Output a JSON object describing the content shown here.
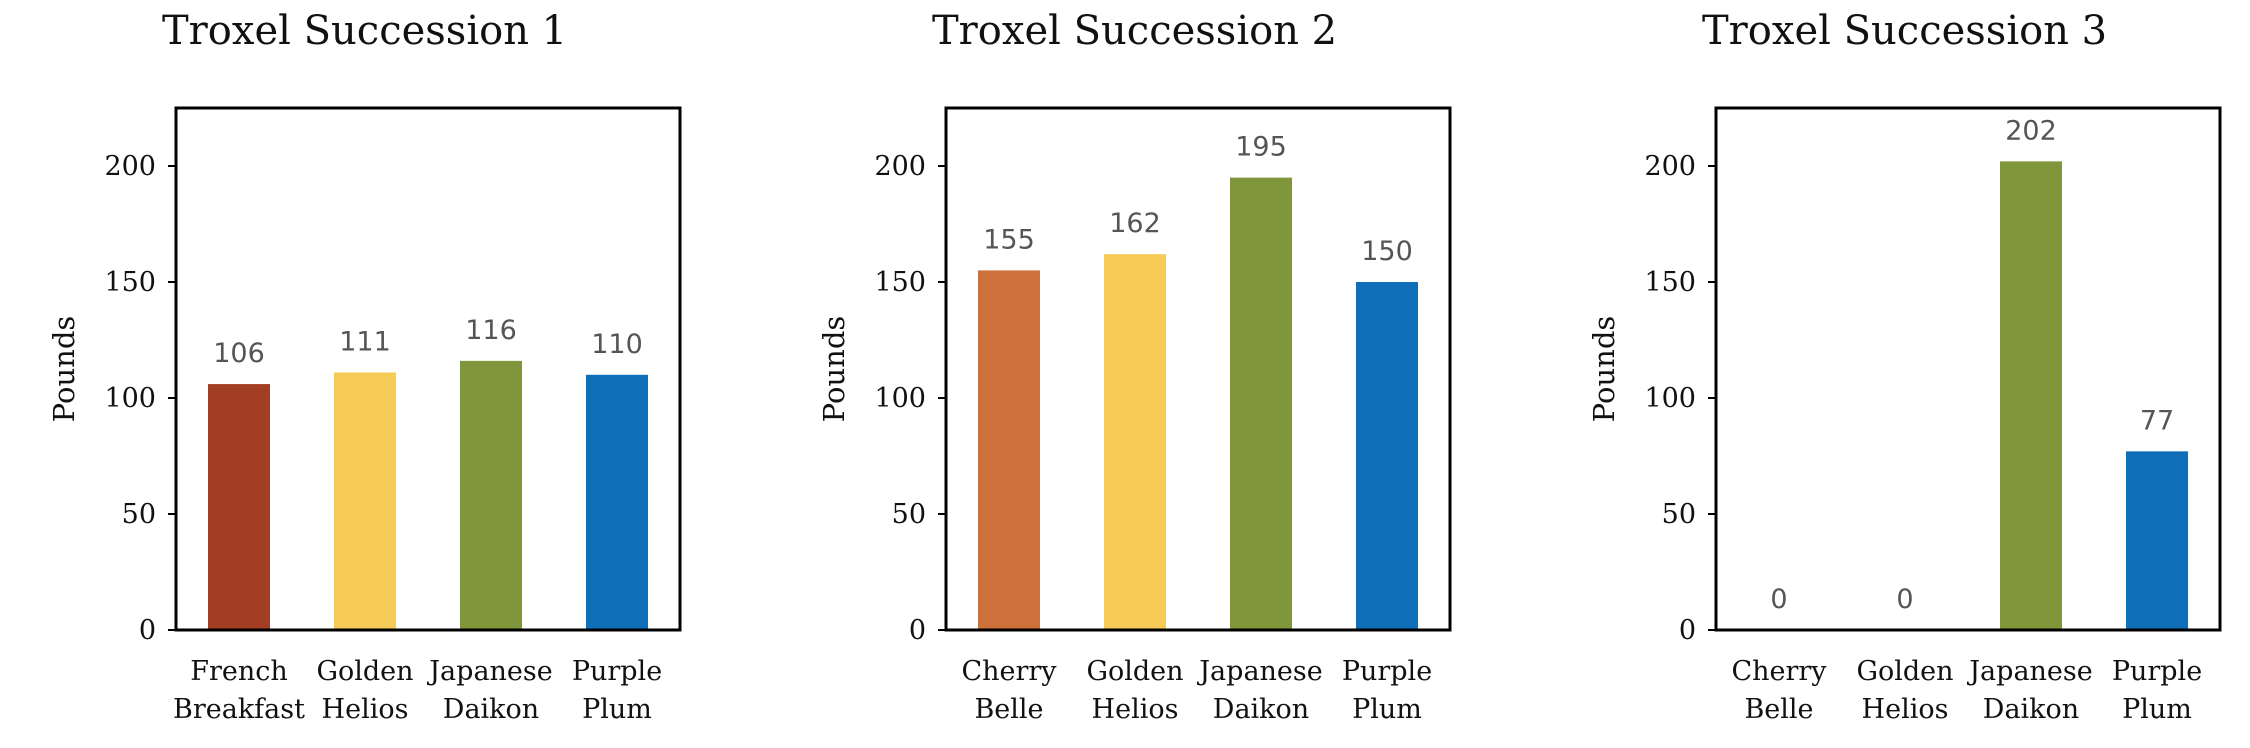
{
  "chart_data": [
    {
      "type": "bar",
      "title": "Troxel Succession 1",
      "ylabel": "Pounds",
      "xlabel": "",
      "ylim": [
        0,
        225
      ],
      "yticks": [
        0,
        50,
        100,
        150,
        200
      ],
      "grid": false,
      "categories": [
        [
          "French",
          "Breakfast"
        ],
        [
          "Golden",
          "Helios"
        ],
        [
          "Japanese",
          "Daikon"
        ],
        [
          "Purple",
          "Plum"
        ]
      ],
      "values": [
        106,
        111,
        116,
        110
      ],
      "colors": [
        "#A23E23",
        "#F6CB55",
        "#80963B",
        "#0F6EB8"
      ]
    },
    {
      "type": "bar",
      "title": "Troxel Succession 2",
      "ylabel": "Pounds",
      "xlabel": "",
      "ylim": [
        0,
        225
      ],
      "yticks": [
        0,
        50,
        100,
        150,
        200
      ],
      "grid": false,
      "categories": [
        [
          "Cherry",
          "Belle"
        ],
        [
          "Golden",
          "Helios"
        ],
        [
          "Japanese",
          "Daikon"
        ],
        [
          "Purple",
          "Plum"
        ]
      ],
      "values": [
        155,
        162,
        195,
        150
      ],
      "colors": [
        "#CC713C",
        "#F6CB55",
        "#80963B",
        "#0F6EB8"
      ]
    },
    {
      "type": "bar",
      "title": "Troxel Succession 3",
      "ylabel": "Pounds",
      "xlabel": "",
      "ylim": [
        0,
        225
      ],
      "yticks": [
        0,
        50,
        100,
        150,
        200
      ],
      "grid": false,
      "categories": [
        [
          "Cherry",
          "Belle"
        ],
        [
          "Golden",
          "Helios"
        ],
        [
          "Japanese",
          "Daikon"
        ],
        [
          "Purple",
          "Plum"
        ]
      ],
      "values": [
        0,
        0,
        202,
        77
      ],
      "colors": [
        "#CC713C",
        "#F6CB55",
        "#80963B",
        "#0F6EB8"
      ]
    }
  ]
}
